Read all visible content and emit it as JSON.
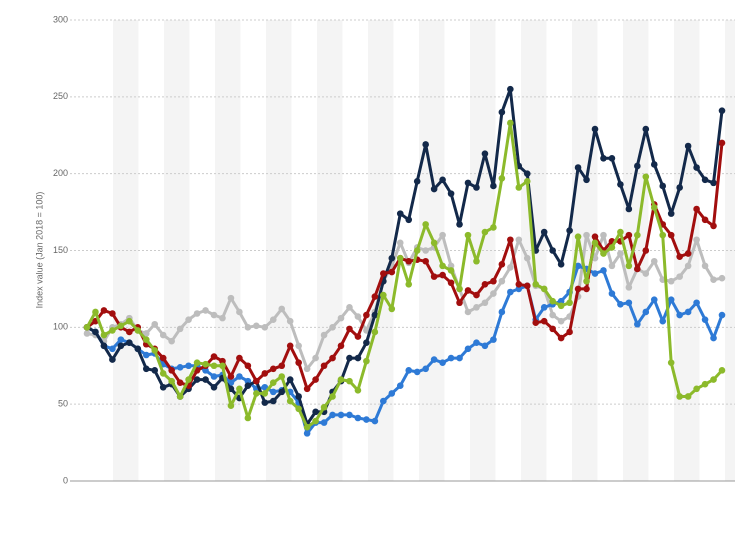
{
  "chart_data": {
    "type": "line",
    "y_label": "Index value (Jan 2018 = 100)",
    "categories": [
      null,
      null,
      null,
      null,
      null,
      null,
      null,
      null,
      null,
      null,
      null,
      null,
      null,
      null,
      null,
      null,
      null,
      null,
      null,
      null,
      null,
      null,
      null,
      null,
      null,
      null,
      null,
      null,
      null,
      null,
      null,
      null,
      null,
      null,
      null,
      null,
      null,
      null,
      null,
      null,
      null,
      null,
      null,
      null,
      null,
      null,
      null,
      null,
      null,
      null,
      null,
      null,
      null,
      null,
      null,
      null,
      null,
      null,
      null,
      null,
      null,
      null,
      null,
      null,
      null,
      null,
      null,
      null,
      null,
      null,
      null,
      null,
      null,
      null,
      null,
      null
    ],
    "ylim": [
      0,
      300
    ],
    "yticks": [
      0,
      50,
      100,
      150,
      200,
      250,
      300
    ],
    "grid": true,
    "series": [
      {
        "color": "#bdbdbd",
        "values": [
          96,
          95,
          91,
          100,
          102,
          106,
          98,
          96,
          102,
          95,
          91,
          99,
          105,
          109,
          111,
          108,
          106,
          119,
          110,
          100,
          101,
          100,
          105,
          112,
          104,
          88,
          73,
          80,
          95,
          100,
          106,
          113,
          107,
          98,
          110,
          130,
          140,
          155,
          142,
          152,
          150,
          152,
          160,
          140,
          125,
          110,
          113,
          116,
          122,
          130,
          139,
          157,
          145,
          127,
          125,
          108,
          104,
          107,
          120,
          160,
          145,
          160,
          140,
          148,
          126,
          138,
          135,
          143,
          131,
          130,
          133,
          140,
          157,
          140,
          131,
          132
        ]
      },
      {
        "color": "#2e7ad6",
        "values": [
          100,
          97,
          88,
          86,
          92,
          90,
          86,
          82,
          83,
          76,
          73,
          74,
          75,
          75,
          72,
          68,
          69,
          64,
          68,
          65,
          60,
          61,
          58,
          59,
          58,
          51,
          31,
          38,
          38,
          43,
          43,
          43,
          41,
          40,
          39,
          52,
          57,
          62,
          72,
          71,
          73,
          79,
          77,
          80,
          80,
          86,
          90,
          88,
          92,
          110,
          123,
          125,
          127,
          105,
          113,
          115,
          117,
          123,
          140,
          138,
          135,
          137,
          122,
          115,
          116,
          102,
          110,
          118,
          104,
          118,
          108,
          110,
          116,
          105,
          93,
          108
        ]
      },
      {
        "color": "#13294a",
        "values": [
          100,
          97,
          88,
          79,
          88,
          90,
          86,
          73,
          72,
          61,
          63,
          55,
          60,
          66,
          66,
          61,
          67,
          60,
          54,
          62,
          65,
          51,
          52,
          58,
          66,
          55,
          37,
          45,
          45,
          58,
          65,
          80,
          80,
          90,
          108,
          130,
          145,
          174,
          170,
          195,
          219,
          190,
          196,
          187,
          167,
          194,
          191,
          213,
          192,
          240,
          255,
          205,
          200,
          150,
          162,
          150,
          141,
          163,
          204,
          196,
          229,
          210,
          210,
          193,
          177,
          205,
          229,
          206,
          192,
          174,
          191,
          218,
          204,
          196,
          194,
          241
        ]
      },
      {
        "color": "#a20e0e",
        "values": [
          100,
          104,
          111,
          109,
          100,
          97,
          100,
          89,
          86,
          80,
          72,
          64,
          62,
          72,
          75,
          81,
          78,
          68,
          80,
          75,
          65,
          70,
          73,
          75,
          88,
          77,
          60,
          66,
          75,
          80,
          88,
          99,
          94,
          108,
          120,
          135,
          136,
          145,
          143,
          144,
          143,
          133,
          134,
          129,
          116,
          124,
          121,
          128,
          130,
          141,
          157,
          128,
          127,
          103,
          104,
          99,
          93,
          97,
          125,
          125,
          159,
          150,
          156,
          156,
          160,
          138,
          150,
          180,
          167,
          160,
          146,
          148,
          177,
          170,
          166,
          220
        ]
      },
      {
        "color": "#8cba2b",
        "values": [
          100,
          110,
          95,
          98,
          101,
          104,
          98,
          92,
          85,
          70,
          65,
          55,
          66,
          77,
          76,
          75,
          75,
          49,
          60,
          41,
          57,
          57,
          64,
          68,
          52,
          47,
          35,
          39,
          48,
          55,
          66,
          65,
          59,
          78,
          97,
          121,
          112,
          145,
          128,
          150,
          167,
          155,
          140,
          137,
          125,
          160,
          143,
          162,
          165,
          197,
          233,
          191,
          195,
          128,
          125,
          117,
          114,
          116,
          159,
          130,
          155,
          148,
          152,
          162,
          140,
          160,
          198,
          178,
          160,
          77,
          55,
          55,
          60,
          63,
          66,
          72
        ]
      }
    ]
  }
}
